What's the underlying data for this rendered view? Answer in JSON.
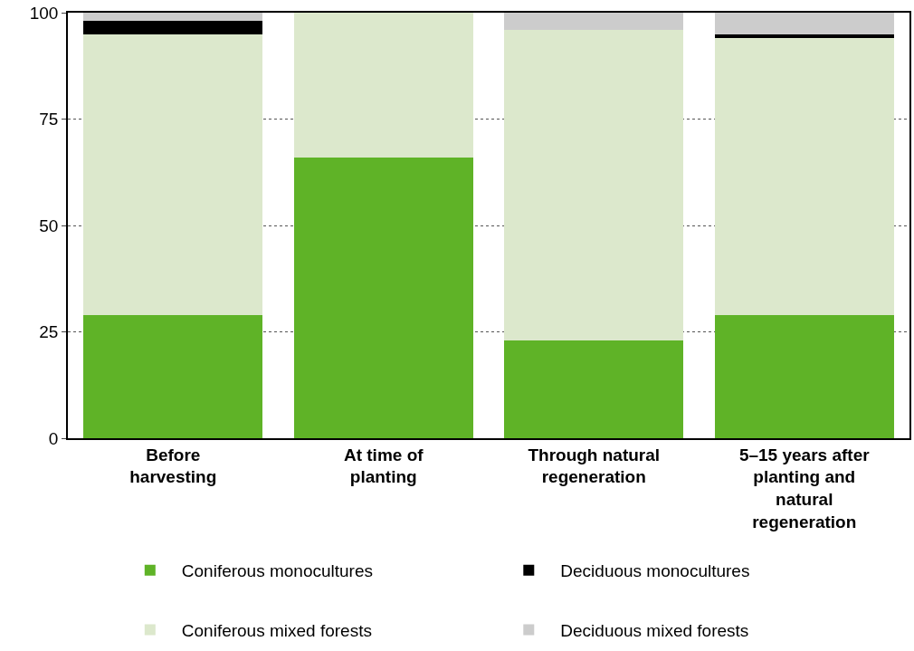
{
  "chart_data": {
    "type": "bar",
    "stacked": true,
    "categories": [
      "Before harvesting",
      "At time of planting",
      "Through natural regeneration",
      "5–15 years after planting and natural regeneration"
    ],
    "series": [
      {
        "name": "Coniferous monocultures",
        "color": "#5fb327",
        "values": [
          29,
          66,
          23,
          29
        ]
      },
      {
        "name": "Coniferous mixed forests",
        "color": "#dce8cc",
        "values": [
          66,
          34,
          73,
          65
        ]
      },
      {
        "name": "Deciduous monocultures",
        "color": "#000000",
        "values": [
          3,
          0,
          0,
          1
        ]
      },
      {
        "name": "Deciduous mixed forests",
        "color": "#cccccc",
        "values": [
          2,
          0,
          4,
          5
        ]
      }
    ],
    "ylim": [
      0,
      100
    ],
    "yticks": [
      0,
      25,
      50,
      75,
      100
    ],
    "grid": "y",
    "legend": "bottom"
  }
}
